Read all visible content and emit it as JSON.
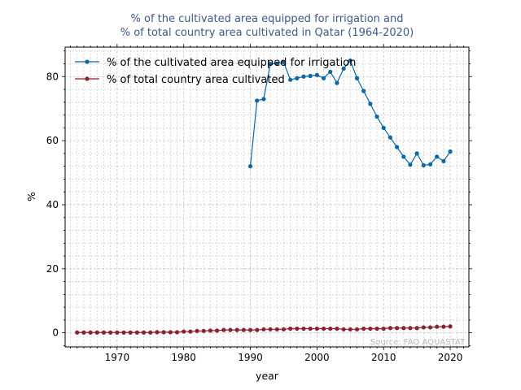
{
  "chart_data": {
    "type": "line",
    "title_line1": "% of the cultivated area equipped for irrigation and",
    "title_line2": "% of total country area cultivated in Qatar (1964-2020)",
    "xlabel": "year",
    "ylabel": "%",
    "xlim": [
      1962.2,
      2022.8
    ],
    "ylim": [
      -4.4,
      89.2
    ],
    "xticks": [
      1970,
      1980,
      1990,
      2000,
      2010,
      2020
    ],
    "yticks": [
      0,
      20,
      40,
      60,
      80
    ],
    "grid": true,
    "legend_position": "top-left",
    "source": "Source: FAO AQUASTAT",
    "series": [
      {
        "name": "% of the cultivated area equipped for irrigation",
        "color": "#0868ac",
        "x": [
          1990,
          1991,
          1992,
          1993,
          1994,
          1995,
          1996,
          1997,
          1998,
          1999,
          2000,
          2001,
          2002,
          2003,
          2004,
          2005,
          2006,
          2007,
          2008,
          2009,
          2010,
          2011,
          2012,
          2013,
          2014,
          2015,
          2016,
          2017,
          2018,
          2019,
          2020
        ],
        "y": [
          52,
          72.5,
          73,
          84,
          84,
          84.5,
          79,
          79.5,
          80,
          80.2,
          80.5,
          79.5,
          81.5,
          78,
          82.5,
          85,
          79.5,
          75.5,
          71.5,
          67.5,
          64,
          61,
          58,
          55,
          52.5,
          56,
          52.3,
          52.6,
          55,
          53.6,
          56.6
        ]
      },
      {
        "name": "% of total country area cultivated",
        "color": "#8c2131",
        "x": [
          1964,
          1965,
          1966,
          1967,
          1968,
          1969,
          1970,
          1971,
          1972,
          1973,
          1974,
          1975,
          1976,
          1977,
          1978,
          1979,
          1980,
          1981,
          1982,
          1983,
          1984,
          1985,
          1986,
          1987,
          1988,
          1989,
          1990,
          1991,
          1992,
          1993,
          1994,
          1995,
          1996,
          1997,
          1998,
          1999,
          2000,
          2001,
          2002,
          2003,
          2004,
          2005,
          2006,
          2007,
          2008,
          2009,
          2010,
          2011,
          2012,
          2013,
          2014,
          2015,
          2016,
          2017,
          2018,
          2019,
          2020
        ],
        "y": [
          0.1,
          0.1,
          0.1,
          0.1,
          0.1,
          0.1,
          0.1,
          0.1,
          0.1,
          0.1,
          0.1,
          0.1,
          0.2,
          0.2,
          0.2,
          0.2,
          0.4,
          0.4,
          0.6,
          0.6,
          0.7,
          0.7,
          0.9,
          0.9,
          0.9,
          0.9,
          0.9,
          0.9,
          1.1,
          1.1,
          1.1,
          1.1,
          1.3,
          1.3,
          1.3,
          1.3,
          1.3,
          1.3,
          1.3,
          1.3,
          1.1,
          1.1,
          1.1,
          1.3,
          1.3,
          1.3,
          1.3,
          1.5,
          1.5,
          1.5,
          1.5,
          1.5,
          1.7,
          1.7,
          1.9,
          1.9,
          2.0
        ]
      }
    ]
  }
}
